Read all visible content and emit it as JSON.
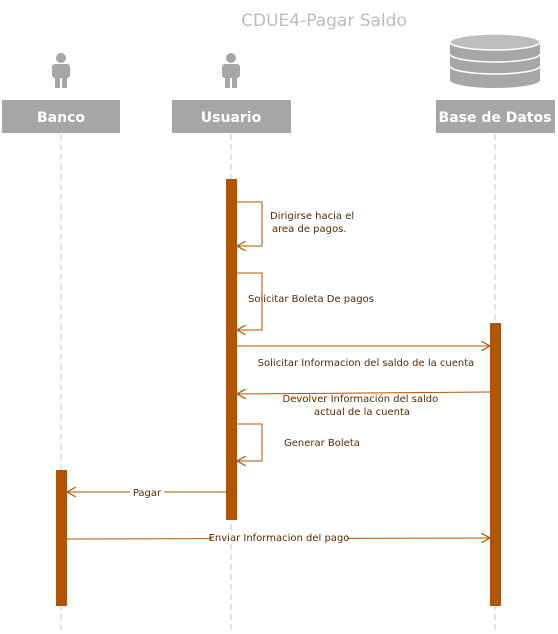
{
  "title": "CDUE4-Pagar Saldo",
  "colors": {
    "header_bg": "#a6a6a6",
    "activation": "#b35400",
    "arrow": "#b35400",
    "lifeline": "#c8c8c8",
    "actor": "#a6a6a6",
    "database": "#a6a6a6"
  },
  "participants": [
    {
      "id": "banco",
      "label": "Banco",
      "icon": "actor-icon"
    },
    {
      "id": "usuario",
      "label": "Usuario",
      "icon": "actor-icon"
    },
    {
      "id": "bd",
      "label": "Base de Datos",
      "icon": "database-icon"
    }
  ],
  "messages": [
    {
      "id": "m1",
      "lines": [
        "Dirigirse hacia el",
        "area de pagos."
      ],
      "from": "usuario",
      "to": "usuario",
      "type": "self"
    },
    {
      "id": "m2",
      "lines": [
        "Solicitar Boleta De pagos"
      ],
      "from": "usuario",
      "to": "usuario",
      "type": "self"
    },
    {
      "id": "m3",
      "lines": [
        "Solicitar Informacion del saldo de la cuenta"
      ],
      "from": "usuario",
      "to": "bd",
      "type": "call"
    },
    {
      "id": "m4",
      "lines": [
        "Devolver Información del saldo",
        "actual de la cuenta"
      ],
      "from": "bd",
      "to": "usuario",
      "type": "return"
    },
    {
      "id": "m5",
      "lines": [
        "Generar Boleta"
      ],
      "from": "usuario",
      "to": "usuario",
      "type": "self"
    },
    {
      "id": "m6",
      "lines": [
        "Pagar"
      ],
      "from": "usuario",
      "to": "banco",
      "type": "return"
    },
    {
      "id": "m7",
      "lines": [
        "Enviar Informacion del pago"
      ],
      "from": "banco",
      "to": "bd",
      "type": "call"
    }
  ]
}
